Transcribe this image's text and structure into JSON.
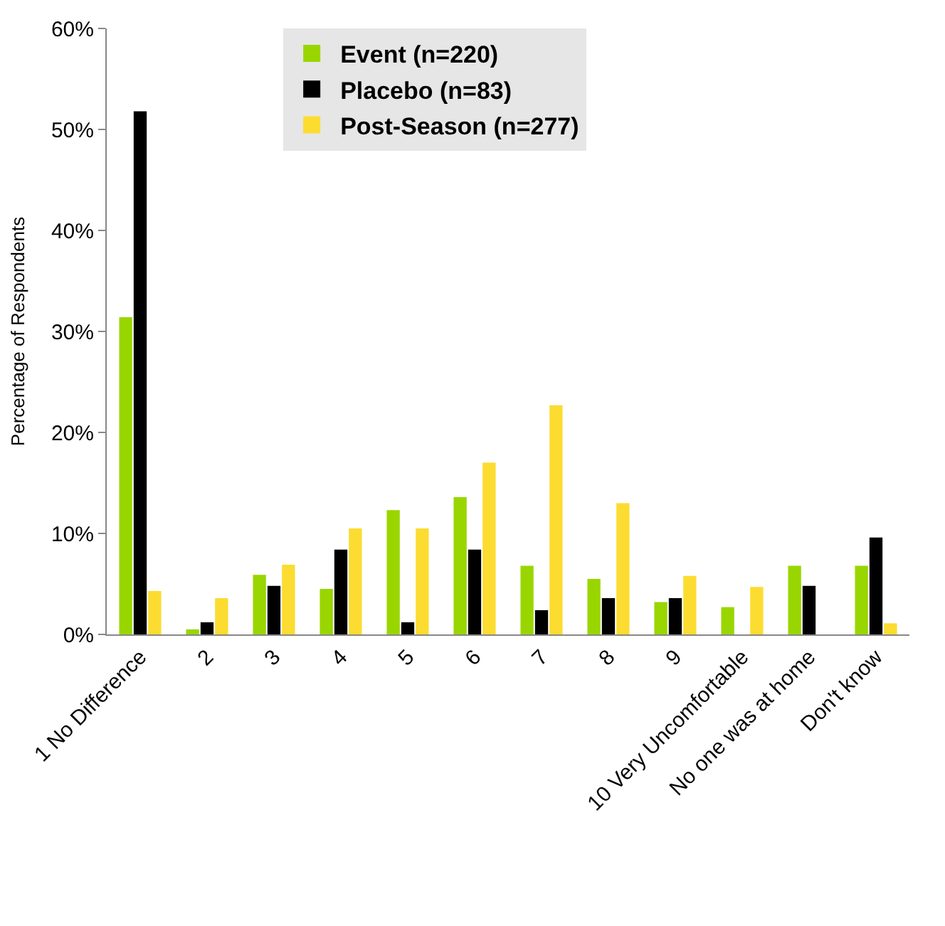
{
  "chart_data": {
    "type": "bar",
    "ylabel": "Percentage of Respondents",
    "categories": [
      "1 No Difference",
      "2",
      "3",
      "4",
      "5",
      "6",
      "7",
      "8",
      "9",
      "10 Very Uncomfortable",
      "No one was at home",
      "Don't know"
    ],
    "series": [
      {
        "name": "Event (n=220)",
        "color": "#99d600",
        "values": [
          31.4,
          0.5,
          5.9,
          4.5,
          12.3,
          13.6,
          6.8,
          5.5,
          3.2,
          2.7,
          6.8,
          6.8
        ]
      },
      {
        "name": "Placebo (n=83)",
        "color": "#000000",
        "values": [
          51.8,
          1.2,
          4.8,
          8.4,
          1.2,
          8.4,
          2.4,
          3.6,
          3.6,
          0,
          4.8,
          9.6
        ]
      },
      {
        "name": "Post-Season (n=277)",
        "color": "#fcdc30",
        "values": [
          4.3,
          3.6,
          6.9,
          10.5,
          10.5,
          17.0,
          22.7,
          13.0,
          5.8,
          4.7,
          0,
          1.1
        ]
      }
    ],
    "ylim": [
      0,
      60
    ],
    "yticks": [
      {
        "value": 0,
        "label": "0%"
      },
      {
        "value": 10,
        "label": "10%"
      },
      {
        "value": 20,
        "label": "20%"
      },
      {
        "value": 30,
        "label": "30%"
      },
      {
        "value": 40,
        "label": "40%"
      },
      {
        "value": 50,
        "label": "50%"
      },
      {
        "value": 60,
        "label": "60%"
      }
    ],
    "legend": "top"
  }
}
